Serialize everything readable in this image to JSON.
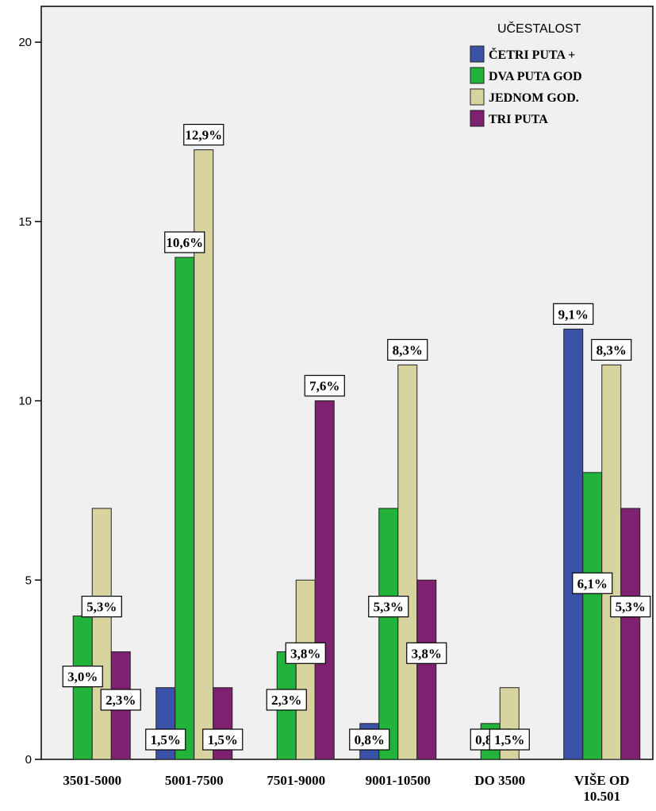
{
  "chart_data": {
    "type": "bar",
    "categories": [
      "3501-5000",
      "5001-7500",
      "7501-9000",
      "9001-10500",
      "DO 3500",
      "VIŠE OD 10.501"
    ],
    "category_lines": [
      [
        "3501-5000"
      ],
      [
        "5001-7500"
      ],
      [
        "7501-9000"
      ],
      [
        "9001-10500"
      ],
      [
        "DO 3500"
      ],
      [
        "VIŠE OD",
        "10.501"
      ]
    ],
    "ylim": [
      0,
      21
    ],
    "yticks": [
      0,
      5,
      10,
      15,
      20
    ],
    "title": "",
    "xlabel": "",
    "ylabel": "",
    "legend": {
      "title": "UČESTALOST",
      "position": "top-right"
    },
    "series": [
      {
        "name": "ČETRI PUTA +",
        "color": "#3a52a8",
        "values": [
          0,
          2,
          0,
          1,
          0,
          12
        ],
        "labels": [
          "",
          "1,5%",
          "",
          "0,8%",
          "",
          "9,1%"
        ]
      },
      {
        "name": "DVA PUTA GOD",
        "color": "#22b33a",
        "values": [
          4,
          14,
          3,
          7,
          1,
          8
        ],
        "labels": [
          "3,0%",
          "10,6%",
          "2,3%",
          "5,3%",
          "0,8%",
          "6,1%"
        ]
      },
      {
        "name": "JEDNOM GOD.",
        "color": "#d8d4a0",
        "values": [
          7,
          17,
          5,
          11,
          2,
          11
        ],
        "labels": [
          "5,3%",
          "12,9%",
          "3,8%",
          "8,3%",
          "1,5%",
          "8,3%"
        ]
      },
      {
        "name": "TRI PUTA",
        "color": "#7d2170",
        "values": [
          3,
          2,
          10,
          5,
          0,
          7
        ],
        "labels": [
          "2,3%",
          "1,5%",
          "7,6%",
          "3,8%",
          "",
          "5,3%"
        ]
      }
    ],
    "plot_background": "#f0f0f0",
    "grid": false
  }
}
